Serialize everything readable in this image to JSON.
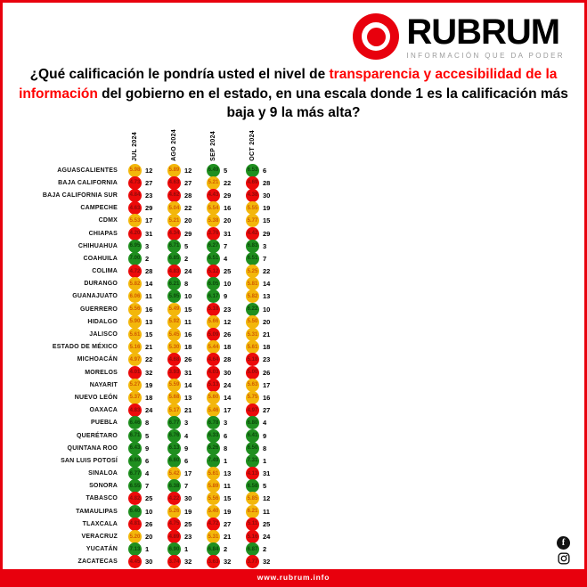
{
  "brand": {
    "name": "RUBRUM",
    "tagline": "INFORMACIÓN QUE DA PODER",
    "website": "www.rubrum.info"
  },
  "title": {
    "pre": "¿Qué calificación le pondría usted el nivel de ",
    "highlight": "transparencia y accesibilidad de la información",
    "post": " del gobierno en el estado, en una escala donde 1 es la calificación más baja y 9 la más alta?"
  },
  "colors": {
    "green": "#1f8f1f",
    "yellow": "#f3b70b",
    "red": "#ec0a0a",
    "green_text": "#0b4a0b",
    "yellow_text": "#d25c00",
    "red_text": "#8f0b0b",
    "accent": "#e8000d"
  },
  "icons": [
    "facebook-icon",
    "instagram-icon",
    "bullseye-icon"
  ],
  "chart_data": {
    "type": "table",
    "title": "Calificación de transparencia y accesibilidad de la información por estado (escala 1-9)",
    "columns": [
      "JUL 2024",
      "AGO 2024",
      "SEP 2024",
      "OCT 2024"
    ],
    "cell_format": [
      "value",
      "rank",
      "color g=green y=yellow r=red"
    ],
    "color_rule": "ranks 1-10 green, 11-22 yellow, 23-32 red",
    "rows": [
      {
        "state": "AGUASCALIENTES",
        "cells": [
          [
            "5.98",
            12,
            "y"
          ],
          [
            "5.89",
            12,
            "y"
          ],
          [
            "6.49",
            5,
            "g"
          ],
          [
            "6.53",
            6,
            "g"
          ]
        ]
      },
      {
        "state": "BAJA CALIFORNIA",
        "cells": [
          [
            "4.73",
            27,
            "r"
          ],
          [
            "4.63",
            27,
            "r"
          ],
          [
            "5.21",
            22,
            "y"
          ],
          [
            "4.69",
            28,
            "r"
          ]
        ]
      },
      {
        "state": "BAJA CALIFORNIA SUR",
        "cells": [
          [
            "4.84",
            23,
            "r"
          ],
          [
            "4.62",
            28,
            "r"
          ],
          [
            "4.43",
            29,
            "r"
          ],
          [
            "4.38",
            30,
            "r"
          ]
        ]
      },
      {
        "state": "CAMPECHE",
        "cells": [
          [
            "4.63",
            29,
            "r"
          ],
          [
            "5.04",
            22,
            "y"
          ],
          [
            "5.54",
            16,
            "y"
          ],
          [
            "5.55",
            19,
            "y"
          ]
        ]
      },
      {
        "state": "CDMX",
        "cells": [
          [
            "5.53",
            17,
            "y"
          ],
          [
            "5.21",
            20,
            "y"
          ],
          [
            "5.38",
            20,
            "y"
          ],
          [
            "5.77",
            15,
            "y"
          ]
        ]
      },
      {
        "state": "CHIAPAS",
        "cells": [
          [
            "4.20",
            31,
            "r"
          ],
          [
            "4.34",
            29,
            "r"
          ],
          [
            "3.76",
            31,
            "r"
          ],
          [
            "4.42",
            29,
            "r"
          ]
        ]
      },
      {
        "state": "CHIHUAHUA",
        "cells": [
          [
            "6.95",
            3,
            "g"
          ],
          [
            "6.71",
            5,
            "g"
          ],
          [
            "6.27",
            7,
            "g"
          ],
          [
            "6.83",
            3,
            "g"
          ]
        ]
      },
      {
        "state": "COAHUILA",
        "cells": [
          [
            "7.00",
            2,
            "g"
          ],
          [
            "6.85",
            2,
            "g"
          ],
          [
            "6.51",
            4,
            "g"
          ],
          [
            "6.51",
            7,
            "g"
          ]
        ]
      },
      {
        "state": "COLIMA",
        "cells": [
          [
            "4.72",
            28,
            "r"
          ],
          [
            "4.83",
            24,
            "r"
          ],
          [
            "5.12",
            25,
            "r"
          ],
          [
            "5.25",
            22,
            "y"
          ]
        ]
      },
      {
        "state": "DURANGO",
        "cells": [
          [
            "5.82",
            14,
            "y"
          ],
          [
            "6.21",
            8,
            "g"
          ],
          [
            "6.05",
            10,
            "g"
          ],
          [
            "5.81",
            14,
            "y"
          ]
        ]
      },
      {
        "state": "GUANAJUATO",
        "cells": [
          [
            "6.06",
            11,
            "y"
          ],
          [
            "5.95",
            10,
            "g"
          ],
          [
            "6.17",
            9,
            "g"
          ],
          [
            "5.82",
            13,
            "y"
          ]
        ]
      },
      {
        "state": "GUERRERO",
        "cells": [
          [
            "5.56",
            16,
            "y"
          ],
          [
            "5.49",
            15,
            "y"
          ],
          [
            "5.18",
            23,
            "r"
          ],
          [
            "6.22",
            10,
            "g"
          ]
        ]
      },
      {
        "state": "HIDALGO",
        "cells": [
          [
            "5.90",
            13,
            "y"
          ],
          [
            "5.92",
            11,
            "y"
          ],
          [
            "5.66",
            12,
            "y"
          ],
          [
            "5.50",
            20,
            "y"
          ]
        ]
      },
      {
        "state": "JALISCO",
        "cells": [
          [
            "5.61",
            15,
            "y"
          ],
          [
            "5.45",
            16,
            "y"
          ],
          [
            "5.09",
            26,
            "r"
          ],
          [
            "5.31",
            21,
            "y"
          ]
        ]
      },
      {
        "state": "ESTADO DE MÉXICO",
        "cells": [
          [
            "5.16",
            21,
            "y"
          ],
          [
            "5.30",
            18,
            "y"
          ],
          [
            "5.44",
            18,
            "y"
          ],
          [
            "5.61",
            18,
            "y"
          ]
        ]
      },
      {
        "state": "MICHOACÁN",
        "cells": [
          [
            "4.97",
            22,
            "y"
          ],
          [
            "4.68",
            26,
            "r"
          ],
          [
            "4.64",
            28,
            "r"
          ],
          [
            "5.18",
            23,
            "r"
          ]
        ]
      },
      {
        "state": "MORELOS",
        "cells": [
          [
            "4.01",
            32,
            "r"
          ],
          [
            "3.93",
            31,
            "r"
          ],
          [
            "4.03",
            30,
            "r"
          ],
          [
            "5.00",
            26,
            "r"
          ]
        ]
      },
      {
        "state": "NAYARIT",
        "cells": [
          [
            "5.27",
            19,
            "y"
          ],
          [
            "5.59",
            14,
            "y"
          ],
          [
            "5.13",
            24,
            "r"
          ],
          [
            "5.63",
            17,
            "y"
          ]
        ]
      },
      {
        "state": "NUEVO LEÓN",
        "cells": [
          [
            "5.37",
            18,
            "y"
          ],
          [
            "5.68",
            13,
            "y"
          ],
          [
            "5.60",
            14,
            "y"
          ],
          [
            "5.75",
            16,
            "y"
          ]
        ]
      },
      {
        "state": "OAXACA",
        "cells": [
          [
            "4.83",
            24,
            "r"
          ],
          [
            "5.17",
            21,
            "y"
          ],
          [
            "5.46",
            17,
            "y"
          ],
          [
            "4.97",
            27,
            "r"
          ]
        ]
      },
      {
        "state": "PUEBLA",
        "cells": [
          [
            "6.46",
            8,
            "g"
          ],
          [
            "6.77",
            3,
            "g"
          ],
          [
            "6.78",
            3,
            "g"
          ],
          [
            "6.80",
            4,
            "g"
          ]
        ]
      },
      {
        "state": "QUERÉTARO",
        "cells": [
          [
            "6.71",
            5,
            "g"
          ],
          [
            "6.76",
            4,
            "g"
          ],
          [
            "6.33",
            6,
            "g"
          ],
          [
            "6.41",
            9,
            "g"
          ]
        ]
      },
      {
        "state": "QUINTANA ROO",
        "cells": [
          [
            "6.43",
            9,
            "g"
          ],
          [
            "6.13",
            9,
            "g"
          ],
          [
            "6.26",
            8,
            "g"
          ],
          [
            "6.50",
            8,
            "g"
          ]
        ]
      },
      {
        "state": "SAN LUIS POTOSÍ",
        "cells": [
          [
            "6.60",
            6,
            "g"
          ],
          [
            "6.60",
            6,
            "g"
          ],
          [
            "7.49",
            1,
            "g"
          ],
          [
            "7.31",
            1,
            "g"
          ]
        ]
      },
      {
        "state": "SINALOA",
        "cells": [
          [
            "6.77",
            4,
            "g"
          ],
          [
            "5.42",
            17,
            "y"
          ],
          [
            "5.61",
            13,
            "y"
          ],
          [
            "4.13",
            31,
            "r"
          ]
        ]
      },
      {
        "state": "SONORA",
        "cells": [
          [
            "6.55",
            7,
            "g"
          ],
          [
            "6.38",
            7,
            "g"
          ],
          [
            "5.89",
            11,
            "y"
          ],
          [
            "6.58",
            5,
            "g"
          ]
        ]
      },
      {
        "state": "TABASCO",
        "cells": [
          [
            "4.82",
            25,
            "r"
          ],
          [
            "4.22",
            30,
            "r"
          ],
          [
            "5.56",
            15,
            "y"
          ],
          [
            "5.85",
            12,
            "y"
          ]
        ]
      },
      {
        "state": "TAMAULIPAS",
        "cells": [
          [
            "6.40",
            10,
            "g"
          ],
          [
            "5.26",
            19,
            "y"
          ],
          [
            "5.40",
            19,
            "y"
          ],
          [
            "6.21",
            11,
            "y"
          ]
        ]
      },
      {
        "state": "TLAXCALA",
        "cells": [
          [
            "4.81",
            26,
            "r"
          ],
          [
            "4.75",
            25,
            "r"
          ],
          [
            "4.72",
            27,
            "r"
          ],
          [
            "5.11",
            25,
            "r"
          ]
        ]
      },
      {
        "state": "VERACRUZ",
        "cells": [
          [
            "5.20",
            20,
            "y"
          ],
          [
            "4.89",
            23,
            "r"
          ],
          [
            "5.31",
            21,
            "y"
          ],
          [
            "5.16",
            24,
            "r"
          ]
        ]
      },
      {
        "state": "YUCATÁN",
        "cells": [
          [
            "7.13",
            1,
            "g"
          ],
          [
            "6.90",
            1,
            "g"
          ],
          [
            "6.84",
            2,
            "g"
          ],
          [
            "6.87",
            2,
            "g"
          ]
        ]
      },
      {
        "state": "ZACATECAS",
        "cells": [
          [
            "4.45",
            30,
            "r"
          ],
          [
            "3.74",
            32,
            "r"
          ],
          [
            "3.63",
            32,
            "r"
          ],
          [
            "3.77",
            32,
            "r"
          ]
        ]
      }
    ]
  },
  "footer": {
    "fb_letter": "f"
  }
}
